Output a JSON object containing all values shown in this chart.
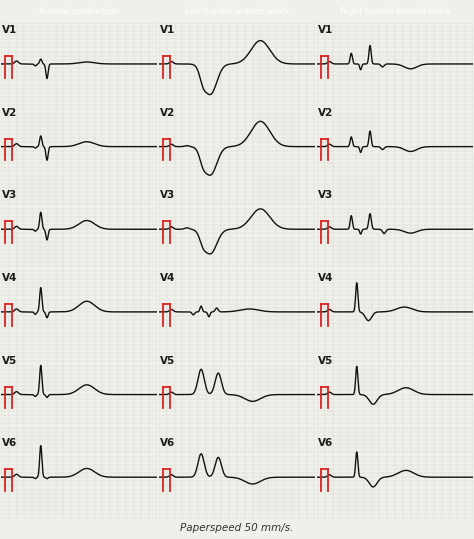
{
  "title_normal": "Normal conduction",
  "title_lbbb": "Left bundle branch block",
  "title_rbbb": "Right bundle branch block",
  "title_bg": "#4ab8bc",
  "title_text_color": "white",
  "bg_color": "#f0f0eb",
  "grid_minor_color": "#d8d8d0",
  "grid_major_color": "#c0c0b8",
  "line_color": "#111111",
  "cal_color": "#dd2222",
  "leads": [
    "V1",
    "V2",
    "V3",
    "V4",
    "V5",
    "V6"
  ],
  "footer": "Paperspeed 50 mm/s.",
  "footer_fontsize": 7.5
}
